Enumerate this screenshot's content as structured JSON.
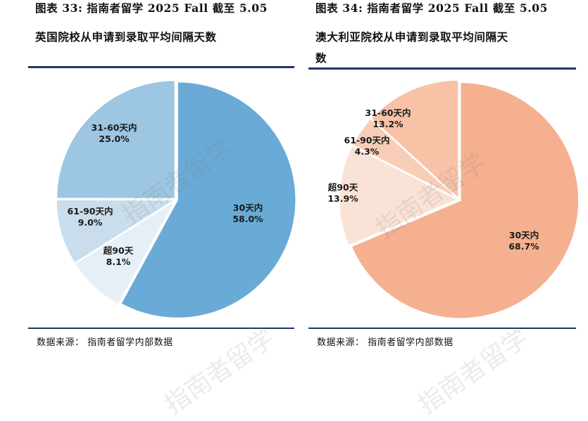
{
  "left": {
    "title_line1": "图表 33: 指南者留学 2025 Fall 截至 5.05",
    "title_line2": "英国院校从申请到录取平均间隔天数",
    "source": "数据来源：  指南者留学内部数据"
  },
  "right": {
    "title_line1": "图表 34: 指南者留学 2025 Fall 截至 5.05",
    "title_line2": "澳大利亚院校从申请到录取平均间隔天",
    "title_line3": "数",
    "source": "数据来源：  指南者留学内部数据"
  },
  "watermark": "指南者留学",
  "colors": {
    "rule": "#1f3864"
  },
  "chart_data": [
    {
      "type": "pie",
      "title": "",
      "slices": [
        {
          "label": "30天内",
          "value": 58.0,
          "value_label": "58.0%",
          "color": "#6aaad6"
        },
        {
          "label": "超90天",
          "value": 8.1,
          "value_label": "8.1%",
          "color": "#e6eff6"
        },
        {
          "label": "61-90天内",
          "value": 9.0,
          "value_label": "9.0%",
          "color": "#c9ddec"
        },
        {
          "label": "31-60天内",
          "value": 25.0,
          "value_label": "25.0%",
          "color": "#9cc6e2"
        }
      ]
    },
    {
      "type": "pie",
      "title": "",
      "slices": [
        {
          "label": "30天内",
          "value": 68.7,
          "value_label": "68.7%",
          "color": "#f5b090"
        },
        {
          "label": "超90天",
          "value": 13.9,
          "value_label": "13.9%",
          "color": "#fbe2d6"
        },
        {
          "label": "61-90天内",
          "value": 4.3,
          "value_label": "4.3%",
          "color": "#f8cdb7"
        },
        {
          "label": "31-60天内",
          "value": 13.2,
          "value_label": "13.2%",
          "color": "#f7c2a6"
        }
      ]
    }
  ]
}
